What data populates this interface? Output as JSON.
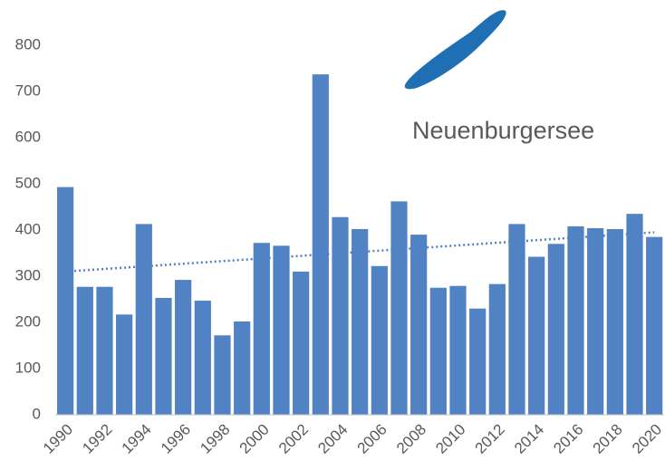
{
  "chart_data": {
    "type": "bar",
    "title": "Neuenburgersee",
    "categories": [
      "1990",
      null,
      "1992",
      null,
      "1994",
      null,
      "1996",
      null,
      "1998",
      null,
      "2000",
      null,
      "2002",
      null,
      "2004",
      null,
      "2006",
      null,
      "2008",
      null,
      "2010",
      null,
      "2012",
      null,
      "2014",
      null,
      "2016",
      null,
      "2018",
      null,
      "2020"
    ],
    "values": [
      493,
      277,
      277,
      217,
      413,
      253,
      292,
      247,
      172,
      202,
      372,
      366,
      310,
      737,
      428,
      402,
      322,
      462,
      390,
      275,
      279,
      230,
      283,
      413,
      342,
      370,
      408,
      404,
      402,
      435,
      385
    ],
    "color": "#5182c4",
    "trendline": [
      310,
      395
    ],
    "ylim": [
      0,
      800
    ],
    "yticks": [
      0,
      100,
      200,
      300,
      400,
      500,
      600,
      700,
      800
    ],
    "grid": false
  }
}
